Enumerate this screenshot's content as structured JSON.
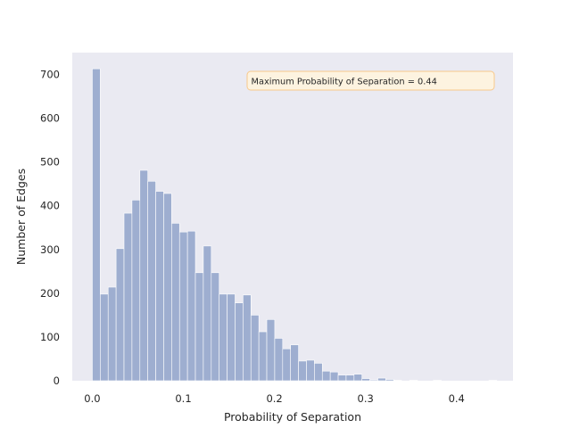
{
  "chart_data": {
    "type": "bar",
    "subtype": "histogram",
    "title": "",
    "xlabel": "Probability of Separation",
    "ylabel": "Number of Edges",
    "xlim": [
      -0.022,
      0.462
    ],
    "ylim": [
      0,
      750
    ],
    "xticks": [
      0.0,
      0.1,
      0.2,
      0.3,
      0.4
    ],
    "xtick_labels": [
      "0.0",
      "0.1",
      "0.2",
      "0.3",
      "0.4"
    ],
    "yticks": [
      0,
      100,
      200,
      300,
      400,
      500,
      600,
      700
    ],
    "ytick_labels": [
      "0",
      "100",
      "200",
      "300",
      "400",
      "500",
      "600",
      "700"
    ],
    "grid": false,
    "background_color": "#eaeaf2",
    "bar_color": "#9eaed0",
    "bin_start": 0.0,
    "bin_width": 0.00871,
    "bin_counts": [
      713,
      198,
      214,
      302,
      383,
      413,
      481,
      456,
      433,
      428,
      360,
      340,
      342,
      247,
      308,
      247,
      198,
      198,
      178,
      196,
      150,
      112,
      140,
      97,
      73,
      82,
      45,
      47,
      40,
      22,
      20,
      13,
      13,
      15,
      5,
      2,
      6,
      3,
      1,
      0,
      1,
      0,
      0,
      1,
      0,
      0,
      0,
      0,
      0,
      0,
      1
    ],
    "annotation": "Maximum Probability of Separation =  0.44",
    "annotation_box": {
      "facecolor": "#fdf3e0",
      "edgecolor": "#f8c88a"
    }
  }
}
